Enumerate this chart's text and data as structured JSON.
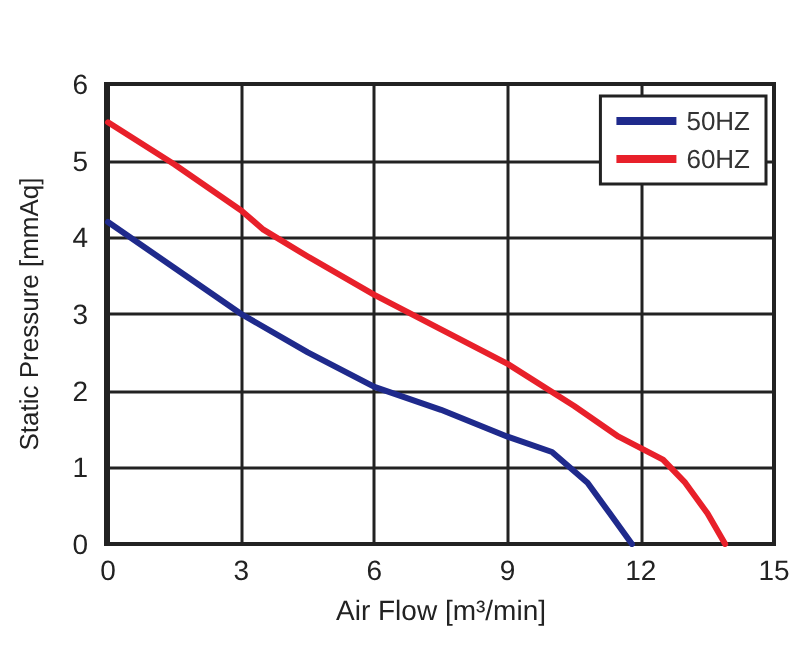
{
  "chart_data": {
    "type": "line",
    "xlabel": "Air Flow [m³/min]",
    "ylabel": "Static Pressure [mmAq]",
    "xlim": [
      0,
      15
    ],
    "xticks": [
      0,
      3,
      6,
      9,
      12,
      15
    ],
    "ylim": [
      0,
      6
    ],
    "yticks": [
      0,
      1,
      2,
      3,
      4,
      5,
      6
    ],
    "grid": true,
    "legend": "top right",
    "marker": "none",
    "line_style": "solid",
    "series": [
      {
        "name": "50HZ",
        "color": "#1f2a8c",
        "x": [
          0,
          1.5,
          3,
          4.5,
          6,
          7.5,
          9,
          10,
          10.8,
          11.3,
          11.8
        ],
        "values": [
          4.2,
          3.6,
          3.0,
          2.5,
          2.05,
          1.75,
          1.4,
          1.2,
          0.8,
          0.4,
          0
        ]
      },
      {
        "name": "60HZ",
        "color": "#e8202a",
        "x": [
          0,
          1.5,
          3,
          3.5,
          4.5,
          6,
          7.5,
          9,
          10.5,
          11.5,
          12.5,
          13,
          13.5,
          13.9
        ],
        "values": [
          5.5,
          4.95,
          4.35,
          4.1,
          3.75,
          3.25,
          2.8,
          2.35,
          1.8,
          1.4,
          1.1,
          0.8,
          0.4,
          0
        ]
      }
    ]
  }
}
